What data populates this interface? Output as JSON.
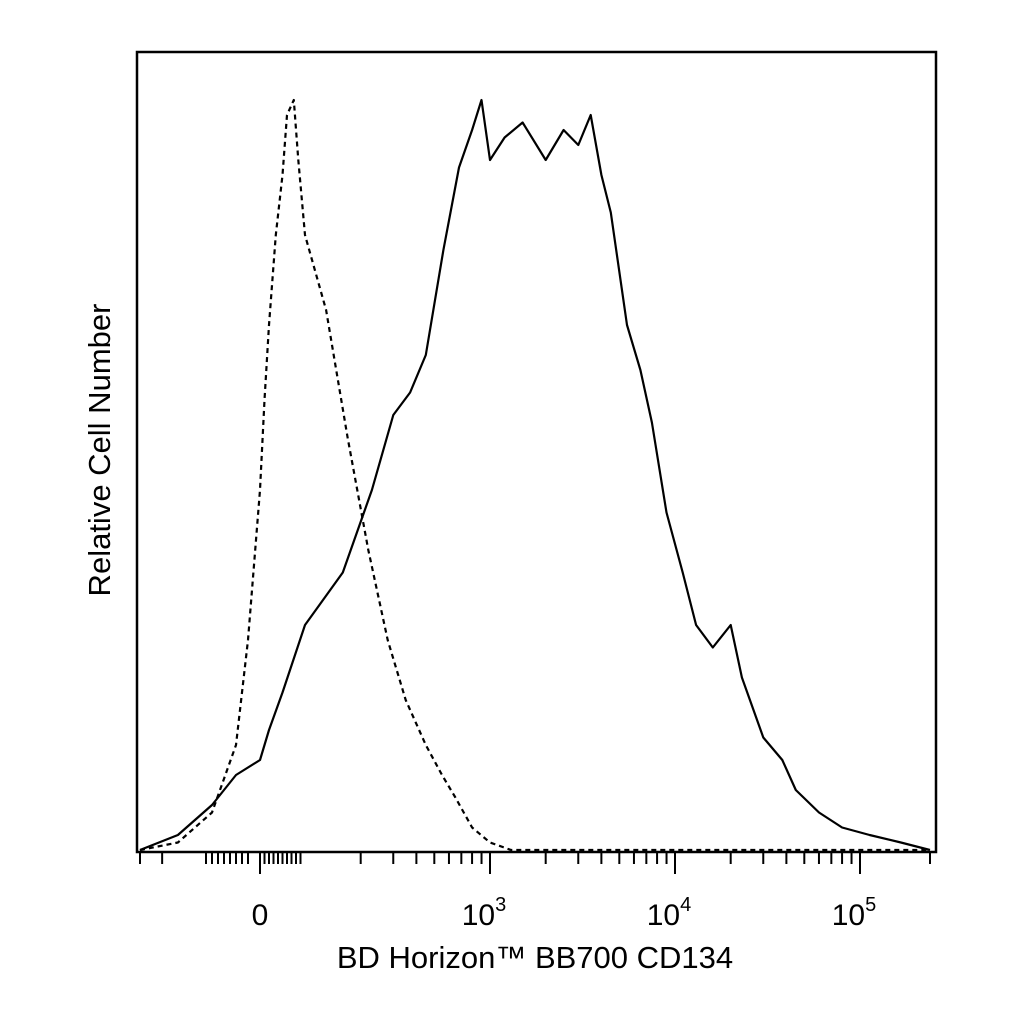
{
  "chart_data": {
    "type": "line",
    "title": "",
    "xlabel": "BD Horizon™ BB700 CD134",
    "ylabel": "Relative Cell Number",
    "x_scale": "biexponential",
    "xlim": [
      -300,
      200000
    ],
    "ylim": [
      0,
      100
    ],
    "grid": false,
    "x_ticks": [
      {
        "value": 0,
        "base": "0",
        "exp": ""
      },
      {
        "value": 1000,
        "base": "10",
        "exp": "3"
      },
      {
        "value": 10000,
        "base": "10",
        "exp": "4"
      },
      {
        "value": 100000,
        "base": "10",
        "exp": "5"
      }
    ],
    "series": [
      {
        "style": "dashed",
        "color": "#000000",
        "points": [
          [
            -300,
            0
          ],
          [
            -150,
            1
          ],
          [
            -80,
            5
          ],
          [
            -40,
            14
          ],
          [
            -20,
            28
          ],
          [
            0,
            48
          ],
          [
            10,
            60
          ],
          [
            20,
            70
          ],
          [
            35,
            82
          ],
          [
            50,
            90
          ],
          [
            60,
            98
          ],
          [
            75,
            100
          ],
          [
            85,
            92
          ],
          [
            100,
            82
          ],
          [
            130,
            72
          ],
          [
            170,
            55
          ],
          [
            220,
            40
          ],
          [
            280,
            28
          ],
          [
            350,
            20
          ],
          [
            450,
            14
          ],
          [
            550,
            10
          ],
          [
            650,
            7
          ],
          [
            800,
            3
          ],
          [
            1000,
            1
          ],
          [
            1300,
            0
          ],
          [
            200000,
            0
          ]
        ]
      },
      {
        "style": "solid",
        "color": "#000000",
        "points": [
          [
            -300,
            0
          ],
          [
            -150,
            2
          ],
          [
            -80,
            6
          ],
          [
            -40,
            10
          ],
          [
            0,
            12
          ],
          [
            20,
            16
          ],
          [
            50,
            21
          ],
          [
            100,
            30
          ],
          [
            160,
            37
          ],
          [
            230,
            48
          ],
          [
            300,
            58
          ],
          [
            370,
            61
          ],
          [
            450,
            66
          ],
          [
            560,
            80
          ],
          [
            680,
            91
          ],
          [
            800,
            96
          ],
          [
            900,
            100
          ],
          [
            1000,
            92
          ],
          [
            1200,
            95
          ],
          [
            1500,
            97
          ],
          [
            2000,
            92
          ],
          [
            2500,
            96
          ],
          [
            3000,
            94
          ],
          [
            3500,
            98
          ],
          [
            4000,
            90
          ],
          [
            4500,
            85
          ],
          [
            5500,
            70
          ],
          [
            6500,
            64
          ],
          [
            7500,
            57
          ],
          [
            9000,
            45
          ],
          [
            11000,
            37
          ],
          [
            13000,
            30
          ],
          [
            16000,
            27
          ],
          [
            20000,
            30
          ],
          [
            23000,
            23
          ],
          [
            30000,
            15
          ],
          [
            38000,
            12
          ],
          [
            45000,
            8
          ],
          [
            60000,
            5
          ],
          [
            80000,
            3
          ],
          [
            110000,
            2
          ],
          [
            150000,
            1
          ],
          [
            200000,
            0
          ]
        ]
      }
    ]
  }
}
